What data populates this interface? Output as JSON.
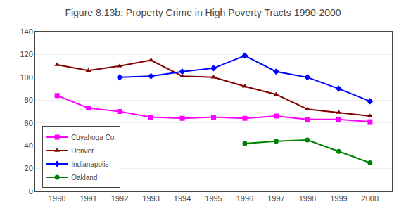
{
  "chart_data": {
    "type": "line",
    "title": "Figure 8.13b: Property Crime in High Poverty Tracts 1990-2000",
    "x": [
      1990,
      1991,
      1992,
      1993,
      1994,
      1995,
      1996,
      1997,
      1998,
      1999,
      2000
    ],
    "series": [
      {
        "name": "Cuyahoga Co.",
        "color": "#ff00ff",
        "marker": "square",
        "values": [
          84,
          73,
          70,
          65,
          64,
          65,
          64,
          66,
          63,
          63,
          61
        ]
      },
      {
        "name": "Denver",
        "color": "#800000",
        "marker": "triangle-up",
        "values": [
          111,
          106,
          110,
          115,
          101,
          100,
          92,
          85,
          72,
          69,
          66
        ]
      },
      {
        "name": "Indianapolis",
        "color": "#0000ff",
        "marker": "diamond",
        "values": [
          null,
          null,
          100,
          101,
          105,
          108,
          119,
          105,
          100,
          90,
          79
        ]
      },
      {
        "name": "Oakland",
        "color": "#008000",
        "marker": "circle",
        "values": [
          null,
          null,
          null,
          null,
          null,
          null,
          42,
          44,
          45,
          35,
          25
        ]
      }
    ],
    "xlim": [
      1989.3,
      2000.7
    ],
    "xticks": [
      1990,
      1991,
      1992,
      1993,
      1994,
      1995,
      1996,
      1997,
      1998,
      1999,
      2000
    ],
    "ylim": [
      0,
      140
    ],
    "yticks": [
      0,
      20,
      40,
      60,
      80,
      100,
      120,
      140
    ],
    "grid": "y",
    "legend": "lower left"
  }
}
